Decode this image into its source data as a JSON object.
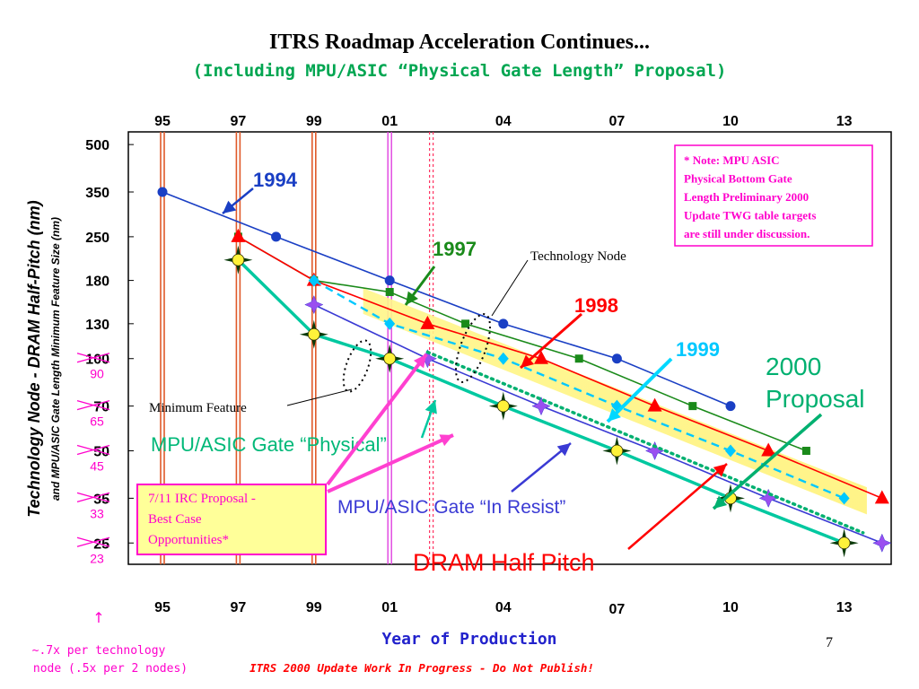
{
  "slide": {
    "title": "ITRS Roadmap Acceleration Continues...",
    "subtitle": "(Including MPU/ASIC “Physical Gate Length” Proposal)",
    "page_number": "7",
    "footer": "ITRS 2000 Update Work In Progress - Do Not Publish!",
    "bottom_note_line1": "~.7x per technology",
    "bottom_note_line2": "node (.5x per 2 nodes)",
    "colors": {
      "title": "#000000",
      "subtitle": "#00a651",
      "footer": "#ff0000",
      "note": "#ff00cc",
      "xlabel": "#2222cc"
    }
  },
  "chart_data": {
    "type": "line",
    "ylabel_main": "Technology Node - DRAM Half-Pitch (nm)",
    "ylabel_sub": "and MPU/ASIC Gate Length Minimum Feature Size (nm)",
    "xlabel": "Year of Production",
    "y_scale": "log",
    "ylim": [
      20,
      500
    ],
    "xlim": [
      1994.5,
      2014.0
    ],
    "x_ticks_top": [
      "95",
      "97",
      "99",
      "01",
      "04",
      "07",
      "10",
      "13"
    ],
    "x_ticks_bottom": [
      "95",
      "97",
      "99",
      "01",
      "04",
      "07",
      "10",
      "13"
    ],
    "x_tick_years": [
      1995,
      1997,
      1999,
      2001,
      2004,
      2007,
      2010,
      2013
    ],
    "y_ticks_black": [
      {
        "label": "500",
        "value": 500
      },
      {
        "label": "350",
        "value": 350
      },
      {
        "label": "250",
        "value": 250
      },
      {
        "label": "180",
        "value": 180
      },
      {
        "label": "130",
        "value": 130
      },
      {
        "label": "100",
        "value": 100
      },
      {
        "label": "70",
        "value": 70
      },
      {
        "label": "50",
        "value": 50
      },
      {
        "label": "35",
        "value": 35
      },
      {
        "label": "25",
        "value": 25
      }
    ],
    "y_ticks_pink": [
      {
        "label": "90",
        "value": 90
      },
      {
        "label": "65",
        "value": 65
      },
      {
        "label": "45",
        "value": 45
      },
      {
        "label": "33",
        "value": 33
      },
      {
        "label": "23",
        "value": 23
      }
    ],
    "vertical_markers": [
      {
        "x": 1995,
        "style": "double-orange"
      },
      {
        "x": 1997,
        "style": "double-orange"
      },
      {
        "x": 1999,
        "style": "double-orange"
      },
      {
        "x": 2001,
        "style": "double-magenta"
      },
      {
        "x": 2002.1,
        "style": "dotted-red"
      }
    ],
    "series": [
      {
        "name": "1994",
        "color": "#1a3fc4",
        "marker": "circle",
        "x": [
          1995,
          1998,
          2001,
          2004,
          2007,
          2010
        ],
        "y": [
          350,
          250,
          180,
          130,
          100,
          70
        ]
      },
      {
        "name": "1997",
        "color": "#1a8a1a",
        "marker": "square",
        "x": [
          1997,
          1999,
          2001,
          2003,
          2006,
          2009,
          2012
        ],
        "y": [
          250,
          180,
          165,
          130,
          100,
          70,
          50
        ]
      },
      {
        "name": "1998",
        "color": "#ff0000",
        "marker": "triangle",
        "x": [
          1997,
          1999,
          2002,
          2005,
          2008,
          2011,
          2014
        ],
        "y": [
          250,
          180,
          130,
          100,
          70,
          50,
          35
        ]
      },
      {
        "name": "1999",
        "color": "#00c8ff",
        "marker": "diamond",
        "dashed": true,
        "x": [
          1999,
          2001,
          2004,
          2007,
          2010,
          2013
        ],
        "y": [
          180,
          130,
          100,
          70,
          50,
          35
        ]
      },
      {
        "name": "MPU/ASIC Gate “In Resist”",
        "color": "#3a3ad4",
        "marker": "star4",
        "x": [
          1999,
          2002,
          2005,
          2008,
          2011,
          2014
        ],
        "y": [
          150,
          100,
          70,
          50,
          35,
          25
        ]
      },
      {
        "name": "MPU/ASIC Gate “Physical”",
        "color": "#00c8a0",
        "marker": "goldstar",
        "x": [
          1997,
          1999,
          2001,
          2004,
          2007,
          2010,
          2013
        ],
        "y": [
          210,
          120,
          100,
          70,
          50,
          35,
          25
        ]
      },
      {
        "name": "2000 Proposal",
        "color": "#00b070",
        "marker": "none",
        "dotted": true,
        "x": [
          2002,
          2013.5
        ],
        "y": [
          105,
          27
        ]
      }
    ],
    "annotations": {
      "label_1994": "1994",
      "label_1997": "1997",
      "label_1998": "1998",
      "label_1999": "1999",
      "label_2000_l1": "2000",
      "label_2000_l2": "Proposal",
      "technology_node": "Technology Node",
      "minimum_feature": "Minimum Feature",
      "gate_physical": "MPU/ASIC Gate “Physical”",
      "gate_in_resist": "MPU/ASIC Gate “In Resist”",
      "dram_half_pitch": "DRAM Half Pitch",
      "note_line1": "* Note: MPU ASIC",
      "note_line2": "Physical Bottom Gate",
      "note_line3": "Length Preliminary 2000",
      "note_line4": "Update TWG table targets",
      "note_line5": "are still under discussion.",
      "irc_line1": "7/11 IRC Proposal -",
      "irc_line2": "Best Case",
      "irc_line3": "Opportunities*"
    }
  }
}
